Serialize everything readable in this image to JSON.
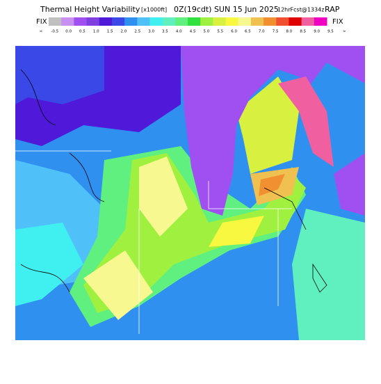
{
  "header": {
    "title": "Thermal Height Variability",
    "units": "[x1000ft]",
    "time": "0Z(19cdt) SUN 15 Jun 2025",
    "forecast": "12hrFcst@1334z",
    "model": "RAP"
  },
  "colorbar": {
    "left_label": "FIX",
    "right_label": "FIX",
    "labels": [
      "<",
      "-0.5",
      "0.0",
      "0.5",
      "1.0",
      "1.5",
      "2.0",
      "2.5",
      "3.0",
      "3.5",
      "4.0",
      "4.5",
      "5.0",
      "5.5",
      "6.0",
      "6.5",
      "7.0",
      "7.5",
      "8.0",
      "8.5",
      "9.0",
      "9.5",
      ">"
    ],
    "colors": [
      "#c0c0c0",
      "#c890f0",
      "#a050f0",
      "#8040e0",
      "#5018d8",
      "#3a48e8",
      "#3090f0",
      "#50c0f8",
      "#40f0f0",
      "#60f0c0",
      "#60f080",
      "#30e040",
      "#a0f040",
      "#d8f040",
      "#f8f840",
      "#f8f890",
      "#f0c050",
      "#f09030",
      "#f05030",
      "#e00000",
      "#f060a0",
      "#f000c0"
    ]
  }
}
